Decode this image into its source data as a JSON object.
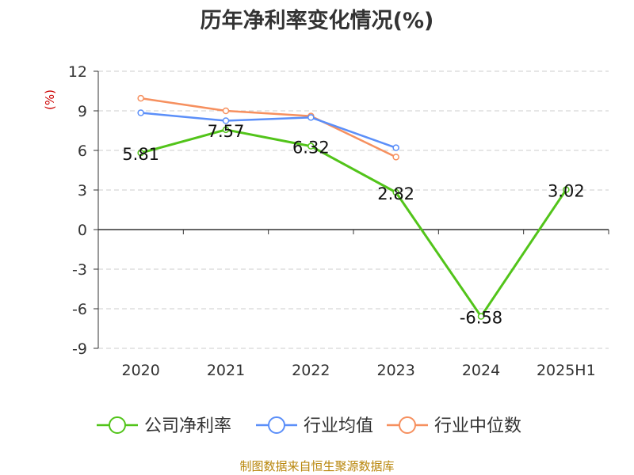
{
  "chart_data": {
    "type": "line",
    "title": "历年净利率变化情况(%)",
    "ylabel": "(%)",
    "categories": [
      "2020",
      "2021",
      "2022",
      "2023",
      "2024",
      "2025H1"
    ],
    "ylim": [
      -9,
      12
    ],
    "yticks": [
      12,
      9,
      6,
      3,
      0,
      -3,
      -6,
      -9
    ],
    "grid": true,
    "legend": "bottom",
    "series": [
      {
        "name": "公司净利率",
        "color": "#52c41a",
        "values": [
          5.81,
          7.57,
          6.32,
          2.82,
          -6.58,
          3.02
        ],
        "labels": [
          "5.81",
          "7.57",
          "6.32",
          "2.82",
          "-6.58",
          "3.02"
        ]
      },
      {
        "name": "行业均值",
        "color": "#5b8ff9",
        "values": [
          8.85,
          8.25,
          8.5,
          6.2,
          null,
          null
        ]
      },
      {
        "name": "行业中位数",
        "color": "#f6905f",
        "values": [
          9.95,
          9.0,
          8.6,
          5.5,
          null,
          null
        ]
      }
    ]
  },
  "source": "制图数据来自恒生聚源数据库"
}
